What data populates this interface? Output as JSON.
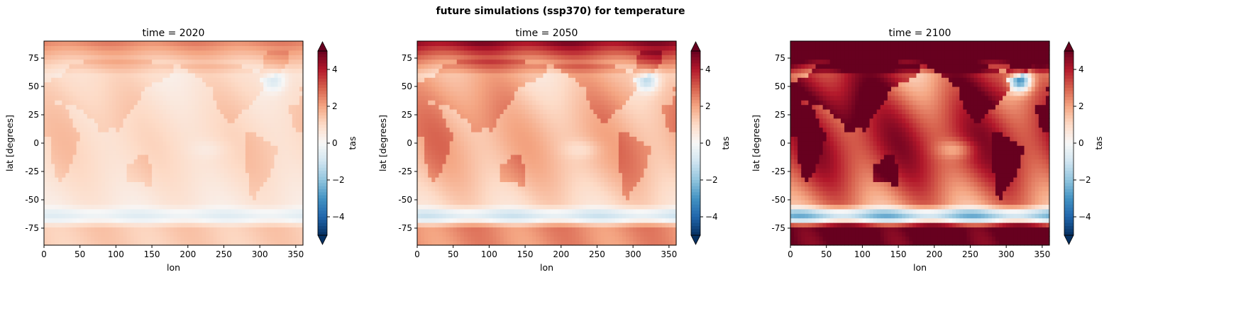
{
  "figure": {
    "suptitle": "future simulations (ssp370) for temperature"
  },
  "chart_data": [
    {
      "type": "heatmap",
      "title": "time = 2020",
      "time": 2020,
      "xlabel": "lon",
      "ylabel": "lat [degrees]",
      "colorbar_label": "tas",
      "colormap": "RdBu_r",
      "xlim": [
        0,
        360
      ],
      "ylim": [
        -90,
        90
      ],
      "clim": [
        -5,
        5
      ],
      "colorbar_extend": "both",
      "xticks": [
        0,
        50,
        100,
        150,
        200,
        250,
        300,
        350
      ],
      "yticks": [
        75,
        50,
        25,
        0,
        -25,
        -50,
        -75
      ],
      "cticks": [
        4,
        2,
        0,
        -2,
        -4
      ],
      "warming_scale": 0.55
    },
    {
      "type": "heatmap",
      "title": "time = 2050",
      "time": 2050,
      "xlabel": "lon",
      "ylabel": "lat [degrees]",
      "colorbar_label": "tas",
      "colormap": "RdBu_r",
      "xlim": [
        0,
        360
      ],
      "ylim": [
        -90,
        90
      ],
      "clim": [
        -5,
        5
      ],
      "colorbar_extend": "both",
      "xticks": [
        0,
        50,
        100,
        150,
        200,
        250,
        300,
        350
      ],
      "yticks": [
        75,
        50,
        25,
        0,
        -25,
        -50,
        -75
      ],
      "cticks": [
        4,
        2,
        0,
        -2,
        -4
      ],
      "warming_scale": 1.0
    },
    {
      "type": "heatmap",
      "title": "time = 2100",
      "time": 2100,
      "xlabel": "lon",
      "ylabel": "lat [degrees]",
      "colorbar_label": "tas",
      "colormap": "RdBu_r",
      "xlim": [
        0,
        360
      ],
      "ylim": [
        -90,
        90
      ],
      "clim": [
        -5,
        5
      ],
      "colorbar_extend": "both",
      "xticks": [
        0,
        50,
        100,
        150,
        200,
        250,
        300,
        350
      ],
      "yticks": [
        75,
        50,
        25,
        0,
        -25,
        -50,
        -75
      ],
      "cticks": [
        4,
        2,
        0,
        -2,
        -4
      ],
      "warming_scale": 2.3
    }
  ]
}
